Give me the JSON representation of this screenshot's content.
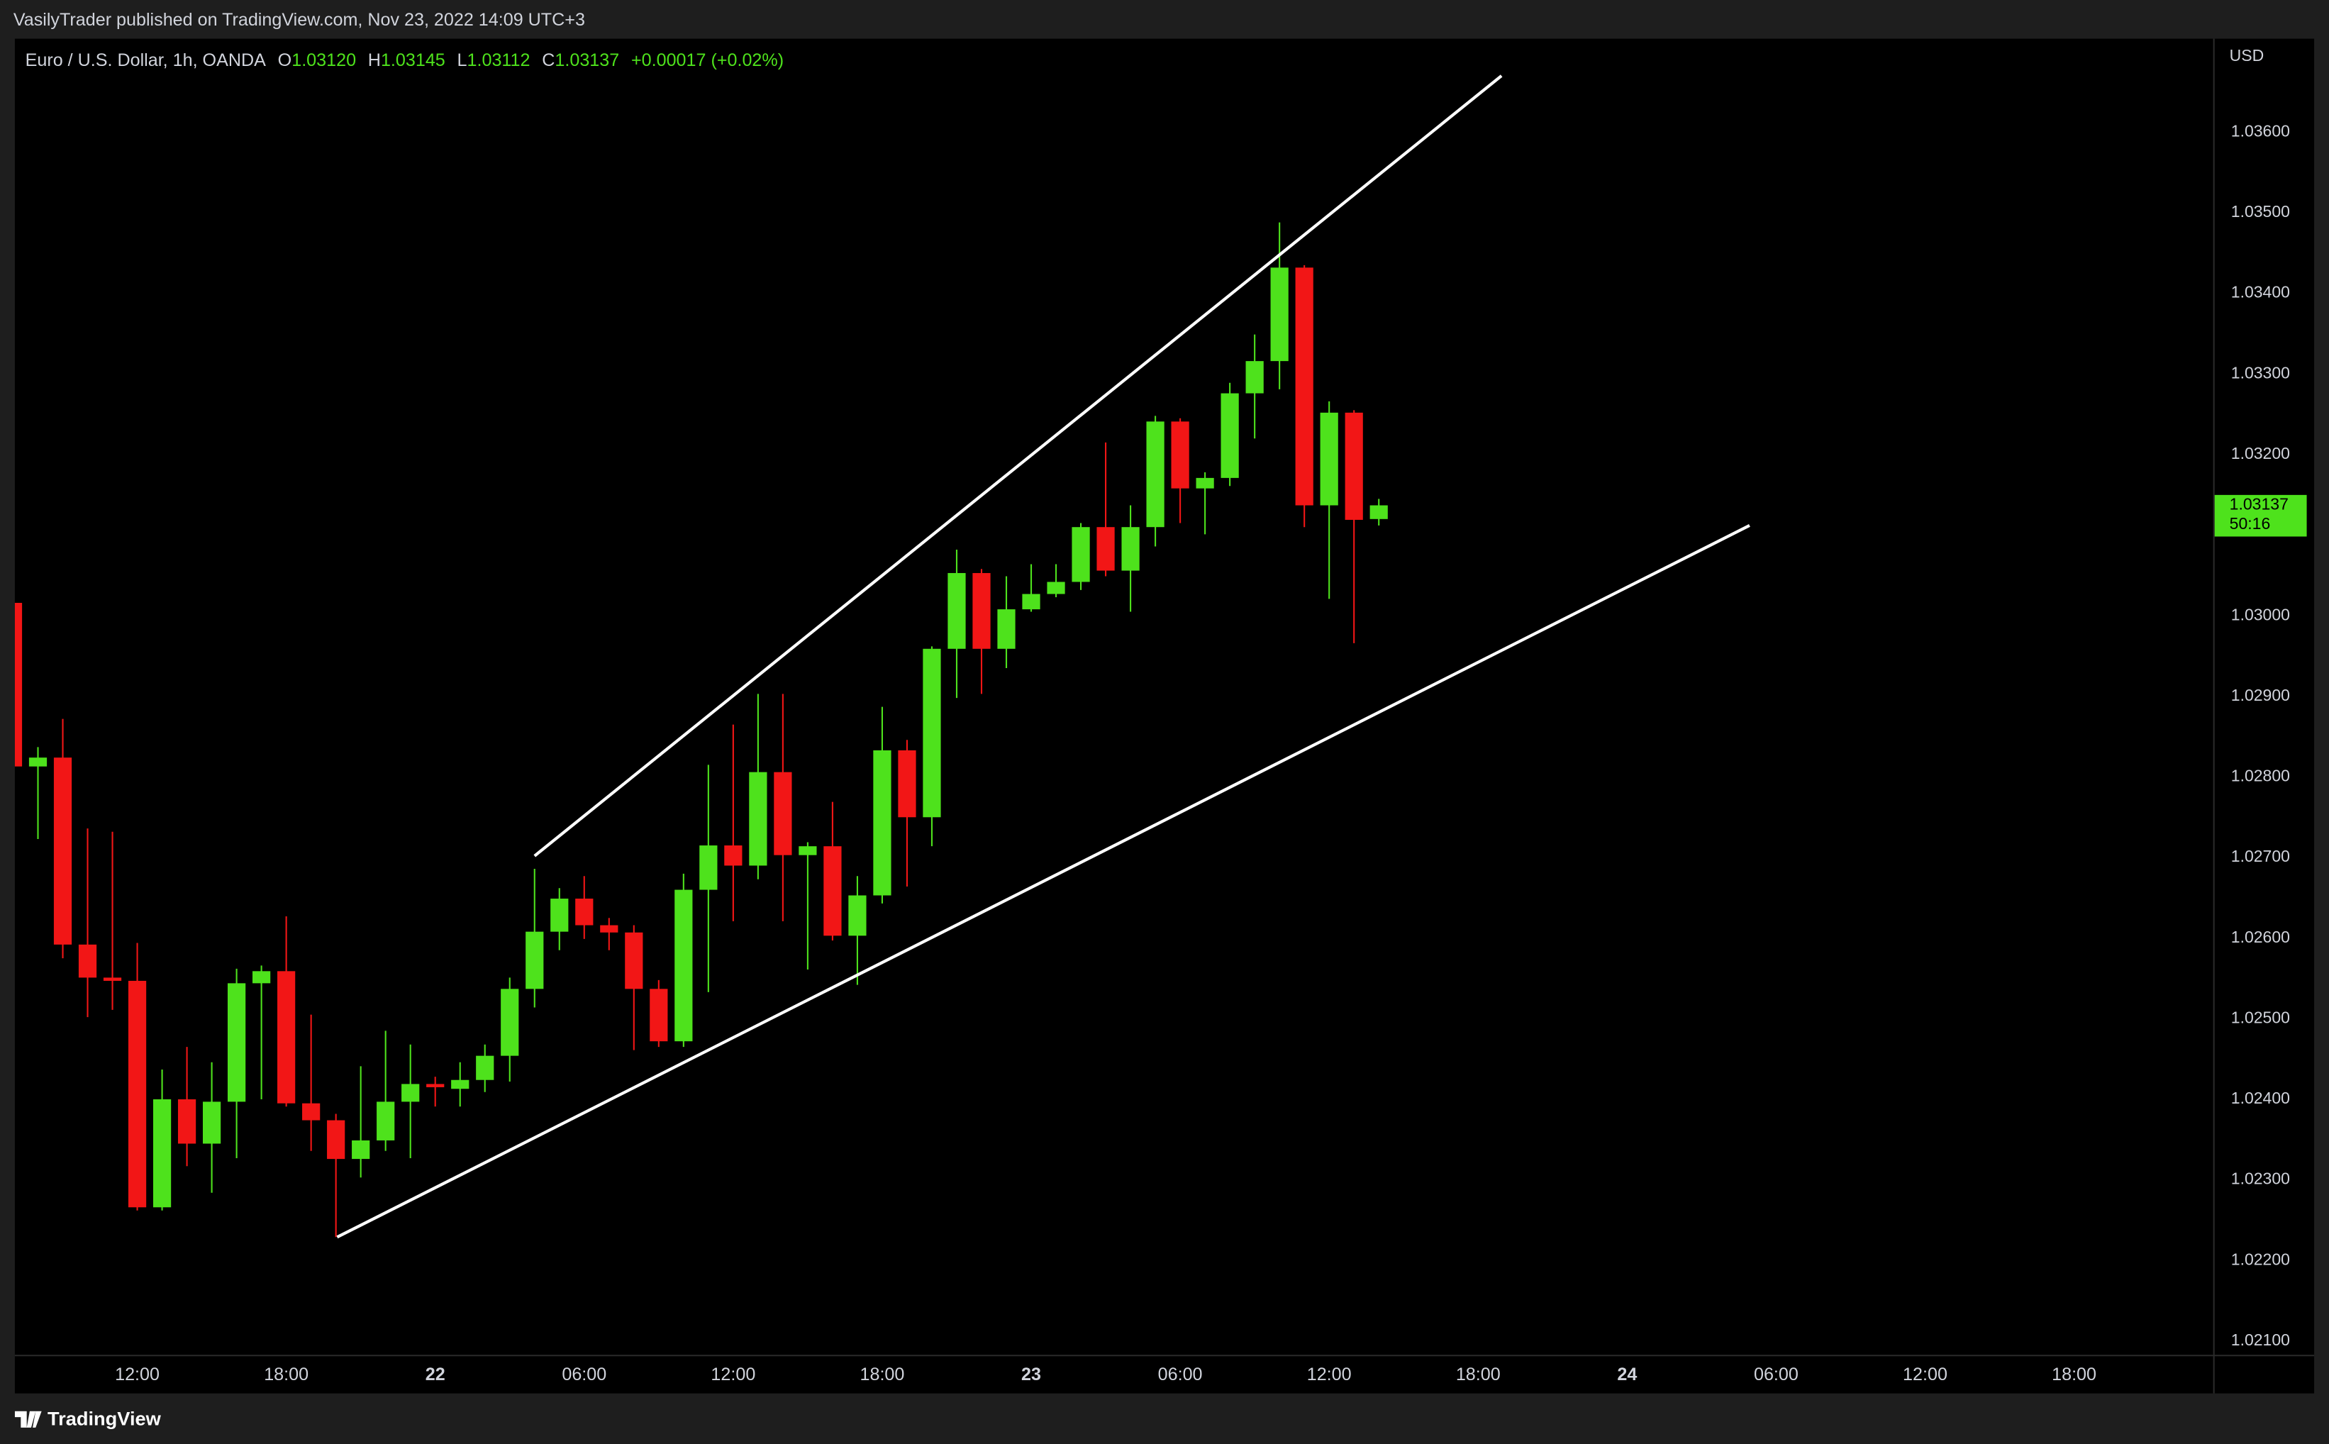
{
  "header": "VasilyTrader published on TradingView.com, Nov 23, 2022 14:09 UTC+3",
  "footer": {
    "brand": "TradingView"
  },
  "chart_data": {
    "type": "candlestick",
    "symbol": "Euro / U.S. Dollar, 1h, OANDA",
    "ohlc_legend": {
      "open_label": "O",
      "open": "1.03120",
      "high_label": "H",
      "high": "1.03145",
      "low_label": "L",
      "low": "1.03112",
      "close_label": "C",
      "close": "1.03137",
      "change": "+0.00017 (+0.02%)"
    },
    "currency": "USD",
    "last_price": {
      "price": "1.03137",
      "countdown": "50:16"
    },
    "up_color": "#4ee21c",
    "down_color": "#f21616",
    "x": [
      7,
      8,
      9,
      10,
      11,
      12,
      13,
      14,
      15,
      16,
      17,
      18,
      19,
      20,
      21,
      22,
      23,
      24,
      25,
      26,
      27,
      28,
      29,
      30,
      31,
      32,
      33,
      34,
      35,
      36,
      37,
      38,
      39,
      40,
      41,
      42,
      43,
      44,
      45,
      46,
      47,
      48,
      49,
      50,
      51,
      52,
      53,
      54,
      55,
      56,
      57,
      58,
      59,
      60,
      61,
      62
    ],
    "open": [
      1.03016,
      1.02813,
      1.02824,
      1.02592,
      1.02551,
      1.02547,
      1.02266,
      1.024,
      1.02345,
      1.02397,
      1.02544,
      1.02559,
      1.02395,
      1.02374,
      1.02326,
      1.02349,
      1.02397,
      1.02419,
      1.02413,
      1.02424,
      1.02454,
      1.02537,
      1.02608,
      1.02649,
      1.02616,
      1.02607,
      1.02537,
      1.02472,
      1.0266,
      1.02715,
      1.0269,
      1.02806,
      1.02703,
      1.02714,
      1.02603,
      1.02653,
      1.02833,
      1.0275,
      1.02959,
      1.03053,
      1.02959,
      1.03008,
      1.03027,
      1.03042,
      1.0311,
      1.03056,
      1.0311,
      1.03241,
      1.03158,
      1.03171,
      1.03276,
      1.03316,
      1.03432,
      1.03137,
      1.03252,
      1.0312
    ],
    "high": [
      1.0302,
      1.02837,
      1.02872,
      1.02736,
      1.02732,
      1.02594,
      1.02437,
      1.02465,
      1.02446,
      1.02562,
      1.02566,
      1.02627,
      1.02505,
      1.02382,
      1.02441,
      1.02485,
      1.02468,
      1.02428,
      1.02446,
      1.02468,
      1.02551,
      1.02686,
      1.02662,
      1.02677,
      1.02625,
      1.02616,
      1.02548,
      1.0268,
      1.02815,
      1.02865,
      1.02903,
      1.02903,
      1.02719,
      1.02769,
      1.02677,
      1.02887,
      1.02846,
      1.02962,
      1.03082,
      1.03058,
      1.03049,
      1.03064,
      1.03064,
      1.03115,
      1.03215,
      1.03137,
      1.03248,
      1.03245,
      1.03178,
      1.03289,
      1.03349,
      1.03488,
      1.03435,
      1.03266,
      1.03255,
      1.03145
    ],
    "low": [
      1.028,
      1.02723,
      1.02575,
      1.02502,
      1.02511,
      1.02262,
      1.02262,
      1.02317,
      1.02284,
      1.02327,
      1.024,
      1.02391,
      1.02336,
      1.02229,
      1.02303,
      1.02336,
      1.02327,
      1.02391,
      1.02391,
      1.02409,
      1.02422,
      1.02514,
      1.02585,
      1.02599,
      1.02585,
      1.02461,
      1.02465,
      1.02465,
      1.02533,
      1.02621,
      1.02673,
      1.02621,
      1.02561,
      1.02597,
      1.02542,
      1.02643,
      1.02664,
      1.02714,
      1.02898,
      1.02903,
      1.02935,
      1.03005,
      1.03023,
      1.03032,
      1.03049,
      1.03005,
      1.03086,
      1.03115,
      1.03101,
      1.03161,
      1.0322,
      1.03281,
      1.0311,
      1.03021,
      1.02966,
      1.03112
    ],
    "close": [
      1.02813,
      1.02824,
      1.02592,
      1.02551,
      1.02547,
      1.02266,
      1.024,
      1.02345,
      1.02397,
      1.02544,
      1.02559,
      1.02395,
      1.02374,
      1.02326,
      1.02349,
      1.02397,
      1.02419,
      1.02415,
      1.02424,
      1.02454,
      1.02537,
      1.02608,
      1.02649,
      1.02616,
      1.02607,
      1.02537,
      1.02472,
      1.0266,
      1.02715,
      1.0269,
      1.02806,
      1.02703,
      1.02714,
      1.02603,
      1.02653,
      1.02833,
      1.0275,
      1.02959,
      1.03053,
      1.02959,
      1.03008,
      1.03027,
      1.03042,
      1.0311,
      1.03056,
      1.0311,
      1.03241,
      1.03158,
      1.03171,
      1.03276,
      1.03316,
      1.03432,
      1.03137,
      1.03252,
      1.03119,
      1.03137
    ],
    "xlim": [
      7.07,
      95.6
    ],
    "xticks": [
      {
        "value": 12,
        "label": "12:00"
      },
      {
        "value": 18,
        "label": "18:00"
      },
      {
        "value": 24,
        "label": "22"
      },
      {
        "value": 30,
        "label": "06:00"
      },
      {
        "value": 36,
        "label": "12:00"
      },
      {
        "value": 42,
        "label": "18:00"
      },
      {
        "value": 48,
        "label": "23"
      },
      {
        "value": 54,
        "label": "06:00"
      },
      {
        "value": 60,
        "label": "12:00"
      },
      {
        "value": 66,
        "label": "18:00"
      },
      {
        "value": 72,
        "label": "24"
      },
      {
        "value": 78,
        "label": "06:00"
      },
      {
        "value": 84,
        "label": "12:00"
      },
      {
        "value": 90,
        "label": "18:00"
      }
    ],
    "ylim": [
      1.02083,
      1.03716
    ],
    "yticks": [
      {
        "value": 1.021,
        "label": "1.02100"
      },
      {
        "value": 1.022,
        "label": "1.02200"
      },
      {
        "value": 1.023,
        "label": "1.02300"
      },
      {
        "value": 1.024,
        "label": "1.02400"
      },
      {
        "value": 1.025,
        "label": "1.02500"
      },
      {
        "value": 1.026,
        "label": "1.02600"
      },
      {
        "value": 1.027,
        "label": "1.02700"
      },
      {
        "value": 1.028,
        "label": "1.02800"
      },
      {
        "value": 1.029,
        "label": "1.02900"
      },
      {
        "value": 1.03,
        "label": "1.03000"
      },
      {
        "value": 1.032,
        "label": "1.03200"
      },
      {
        "value": 1.033,
        "label": "1.03300"
      },
      {
        "value": 1.034,
        "label": "1.03400"
      },
      {
        "value": 1.035,
        "label": "1.03500"
      },
      {
        "value": 1.036,
        "label": "1.03600"
      }
    ],
    "trendlines": [
      {
        "x": [
          28.0,
          66.94
        ],
        "y": [
          1.02702,
          1.0367
        ]
      },
      {
        "x": [
          20.05,
          76.93
        ],
        "y": [
          1.02229,
          1.03112
        ]
      }
    ],
    "trendline_color": "#ffffff"
  }
}
